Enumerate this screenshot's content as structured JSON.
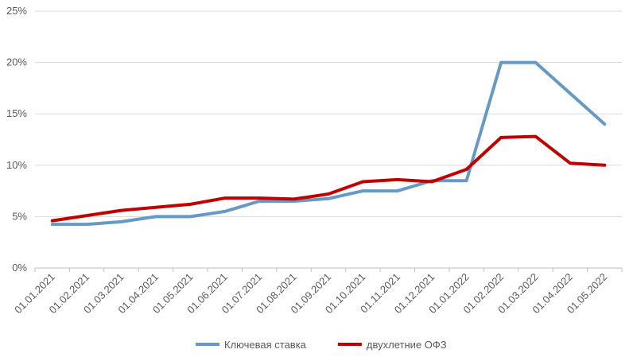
{
  "chart_data": {
    "type": "line",
    "title": "",
    "xlabel": "",
    "ylabel": "",
    "x": [
      "01.01.2021",
      "01.02.2021",
      "01.03.2021",
      "01.04.2021",
      "01.05.2021",
      "01.06.2021",
      "01.07.2021",
      "01.08.2021",
      "01.09.2021",
      "01.10.2021",
      "01.11.2021",
      "01.12.2021",
      "01.01.2022",
      "01.02.2022",
      "01.03.2022",
      "01.04.2022",
      "01.05.2022"
    ],
    "ylim": [
      0,
      25
    ],
    "yticks": [
      0,
      5,
      10,
      15,
      20,
      25
    ],
    "ytick_labels": [
      "0%",
      "5%",
      "10%",
      "15%",
      "20%",
      "25%"
    ],
    "grid": true,
    "legend_position": "bottom",
    "series": [
      {
        "name": "Ключевая ставка",
        "color": "#6699c5",
        "values": [
          4.25,
          4.25,
          4.5,
          5.0,
          5.0,
          5.5,
          6.5,
          6.5,
          6.75,
          7.5,
          7.5,
          8.5,
          8.5,
          20.0,
          20.0,
          17.0,
          14.0
        ]
      },
      {
        "name": "двухлетние ОФЗ",
        "color": "#c00000",
        "values": [
          4.6,
          5.1,
          5.6,
          5.9,
          6.2,
          6.8,
          6.8,
          6.7,
          7.2,
          8.4,
          8.6,
          8.4,
          9.6,
          12.7,
          12.8,
          10.2,
          10.0
        ]
      }
    ]
  }
}
